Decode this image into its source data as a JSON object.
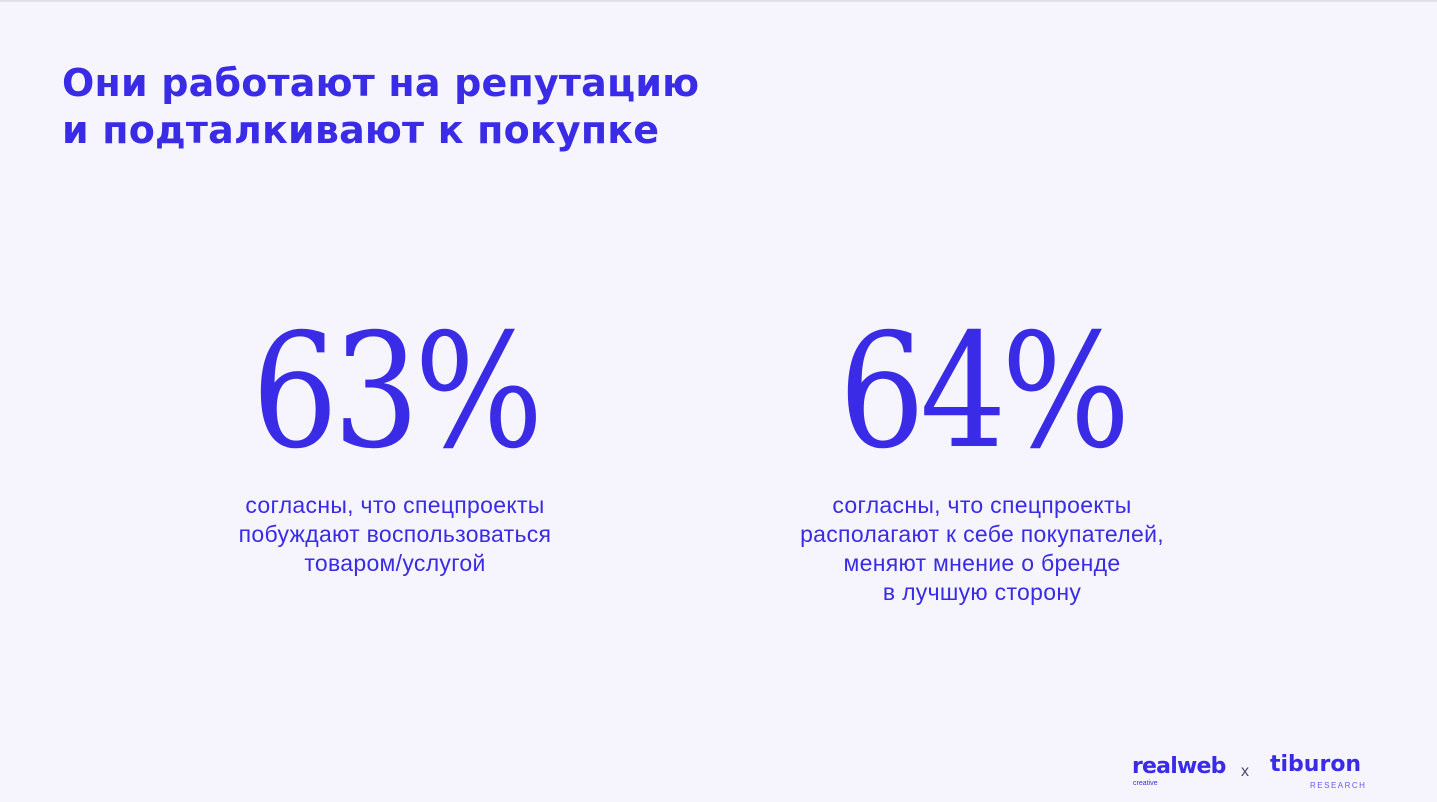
{
  "slide": {
    "title_lines": [
      "Они работают на репутацию",
      "и подталкивают к покупке"
    ],
    "stats": [
      {
        "value": "63%",
        "description_lines": [
          "согласны, что спецпроекты",
          "побуждают воспользоваться",
          "товаром/услугой"
        ]
      },
      {
        "value": "64%",
        "description_lines": [
          "согласны, что спецпроекты",
          "располагают к себе покупателей,",
          "меняют мнение о бренде",
          "в лучшую сторону"
        ]
      }
    ]
  },
  "footer": {
    "logo_realweb": "realweb",
    "logo_realweb_sub": "creative",
    "separator": "x",
    "logo_tiburon": "tiburon",
    "logo_tiburon_sub": "RESEARCH"
  },
  "colors": {
    "accent": "#3a2ce6",
    "background": "#f6f4fd"
  }
}
